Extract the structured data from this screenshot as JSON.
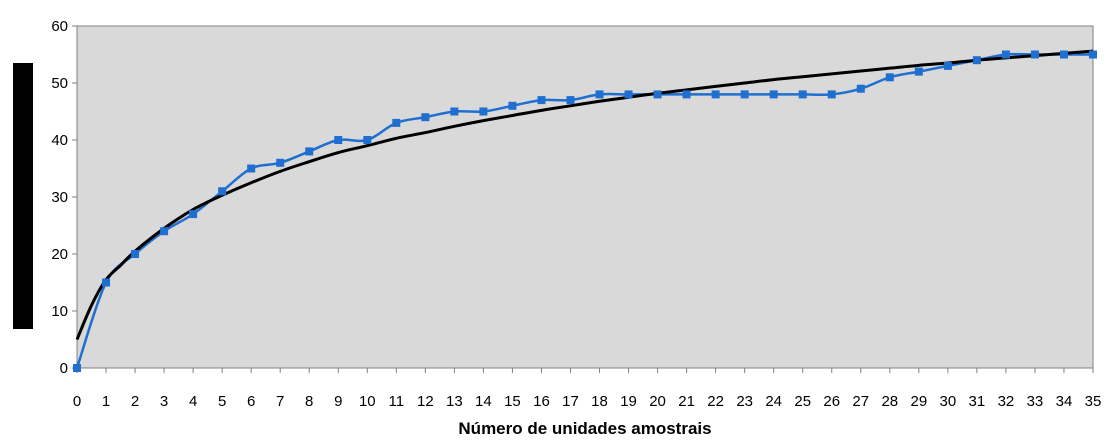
{
  "chart_data": {
    "type": "line",
    "title": "",
    "xlabel": "Número de unidades amostrais",
    "ylabel": "",
    "xlim": [
      0,
      35
    ],
    "ylim": [
      0,
      60
    ],
    "x_ticks": [
      0,
      1,
      2,
      3,
      4,
      5,
      6,
      7,
      8,
      9,
      10,
      11,
      12,
      13,
      14,
      15,
      16,
      17,
      18,
      19,
      20,
      21,
      22,
      23,
      24,
      25,
      26,
      27,
      28,
      29,
      30,
      31,
      32,
      33,
      34,
      35
    ],
    "y_ticks": [
      0,
      10,
      20,
      30,
      40,
      50,
      60
    ],
    "plot_background": "#d9d9d9",
    "grid": false,
    "legend": "none",
    "series": [
      {
        "color": "#1f6fd1",
        "marker": "square",
        "x": [
          0,
          1,
          2,
          3,
          4,
          5,
          6,
          7,
          8,
          9,
          10,
          11,
          12,
          13,
          14,
          15,
          16,
          17,
          18,
          19,
          20,
          21,
          22,
          23,
          24,
          25,
          26,
          27,
          28,
          29,
          30,
          31,
          32,
          33,
          34,
          35
        ],
        "values": [
          0,
          15,
          20,
          24,
          27,
          31,
          35,
          36,
          38,
          40,
          40,
          43,
          44,
          45,
          45,
          46,
          47,
          47,
          48,
          48,
          48,
          48,
          48,
          48,
          48,
          48,
          48,
          49,
          51,
          52,
          53,
          54,
          55,
          55,
          55,
          55
        ]
      },
      {
        "color": "#000000",
        "marker": "none",
        "x": [
          0,
          0.5,
          1,
          1.5,
          2,
          3,
          4,
          5,
          6,
          7,
          8,
          9,
          10,
          11,
          12,
          13,
          14,
          15,
          16,
          17,
          18,
          19,
          20,
          21,
          22,
          23,
          24,
          25,
          26,
          27,
          28,
          29,
          30,
          31,
          32,
          33,
          34,
          35
        ],
        "values": [
          5,
          11,
          15.5,
          18,
          20.5,
          24.5,
          27.8,
          30.3,
          32.5,
          34.5,
          36.2,
          37.8,
          39.0,
          40.3,
          41.3,
          42.4,
          43.4,
          44.3,
          45.2,
          46.0,
          46.8,
          47.5,
          48.2,
          48.8,
          49.4,
          50.0,
          50.6,
          51.1,
          51.6,
          52.1,
          52.6,
          53.1,
          53.5,
          54.0,
          54.4,
          54.8,
          55.2,
          55.6
        ]
      }
    ]
  }
}
